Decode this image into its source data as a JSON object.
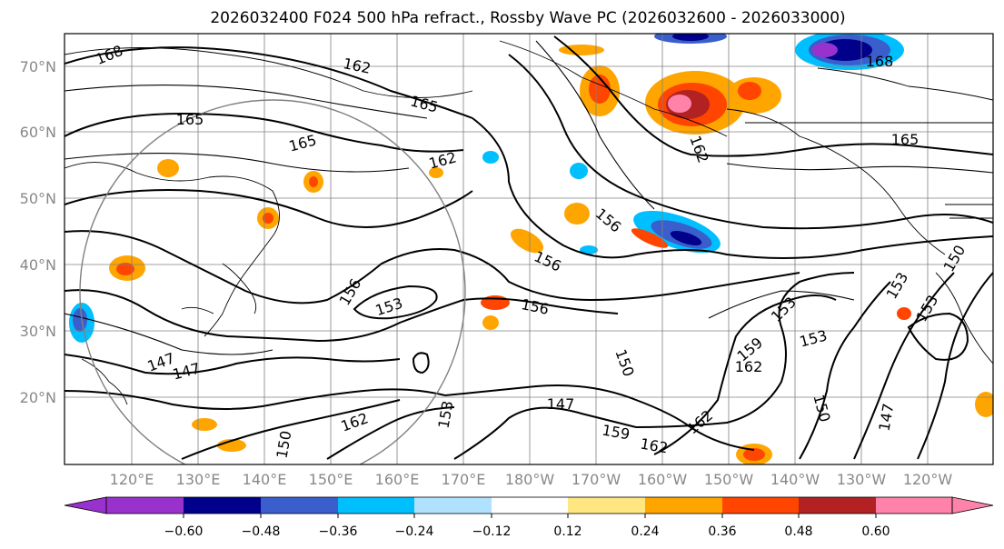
{
  "title": "2026032400 F024 500 hPa refract., Rossby Wave PC (2026032600 - 2026033000)",
  "lat_labels": [
    "70°N",
    "60°N",
    "50°N",
    "40°N",
    "30°N",
    "20°N"
  ],
  "lon_labels": [
    "120°E",
    "130°E",
    "140°E",
    "150°E",
    "160°E",
    "170°E",
    "180°W",
    "170°W",
    "160°W",
    "150°W",
    "140°W",
    "130°W",
    "120°W"
  ],
  "colorbar": {
    "colors": [
      "#9932cc",
      "#00008b",
      "#3a5fcd",
      "#00bfff",
      "#b0e2ff",
      "#ffffff",
      "#ffe680",
      "#ffa500",
      "#ff4500",
      "#b22222",
      "#ff82ab"
    ],
    "under_color": "#9932cc",
    "over_color": "#ff82ab",
    "tick_labels": [
      "−0.60",
      "−0.48",
      "−0.36",
      "−0.24",
      "−0.12",
      "0.12",
      "0.24",
      "0.36",
      "0.48",
      "0.60"
    ]
  },
  "contour_labels": [
    "168",
    "162",
    "165",
    "165",
    "165",
    "162",
    "168",
    "165",
    "162",
    "156",
    "156",
    "153",
    "156",
    "156",
    "153",
    "153",
    "153",
    "153",
    "150",
    "150",
    "150",
    "147",
    "147",
    "147",
    "147",
    "162",
    "162",
    "159",
    "162",
    "159",
    "162",
    "153",
    "150"
  ]
}
